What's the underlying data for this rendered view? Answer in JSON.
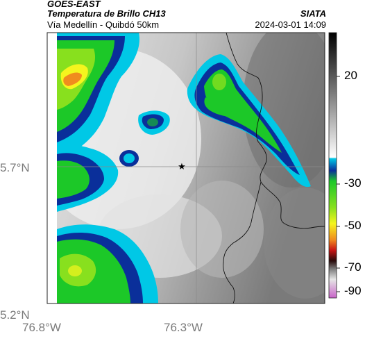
{
  "header": {
    "satellite": "GOES-EAST",
    "title": "Temperatura de Brillo CH13",
    "subtitle": "Vía Medellín - Quibdó 50km",
    "organization": "SIATA",
    "timestamp": "2024-03-01 14:09"
  },
  "map": {
    "latitude_labels": [
      "5.7°N",
      "5.2°N"
    ],
    "longitude_labels": [
      "76.8°W",
      "76.3°W"
    ],
    "marker": "star-marker"
  },
  "colorbar": {
    "tick_labels": [
      "20",
      "-30",
      "-50",
      "-70",
      "-90"
    ],
    "colors": {
      "warm_top": "#000000",
      "warm_bottom": "#ffffff",
      "cyan": "#00c8e6",
      "blue": "#0a2f9a",
      "green": "#1cc828",
      "yellow": "#f5f51e",
      "orange": "#f08c1e",
      "red": "#c81414",
      "dark": "#280a0a",
      "magenta": "#c864c8"
    }
  }
}
